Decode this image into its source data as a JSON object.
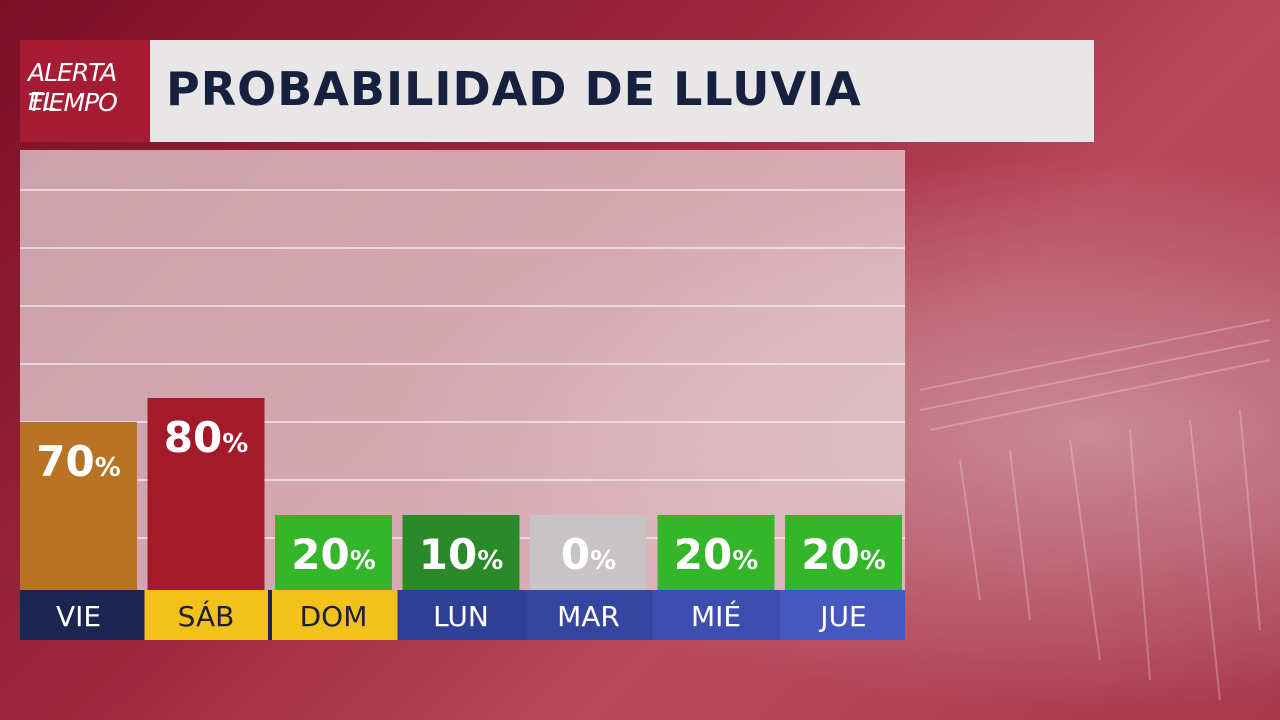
{
  "logo": {
    "line1": "ALERTA EL",
    "line2": "TIEMPO"
  },
  "title": "PROBABILIDAD DE LLUVIA",
  "colors": {
    "brand": "#a61c35",
    "title_text": "#17213f",
    "bar_orange": "#b87424",
    "bar_red": "#a31a2a",
    "bar_green": "#34b52a",
    "bar_darkgreen": "#2a8a2a",
    "bar_gray": "#c8c4c5",
    "day_navy": "#1c2450",
    "day_yellow": "#f2c21a",
    "day_blue": "#3a4aa8"
  },
  "chart_data": {
    "type": "bar",
    "title": "PROBABILIDAD DE LLUVIA",
    "categories": [
      "VIE",
      "SÁB",
      "DOM",
      "LUN",
      "MAR",
      "MIÉ",
      "JUE"
    ],
    "values": [
      70,
      80,
      20,
      10,
      0,
      20,
      20
    ],
    "labels": [
      "70%",
      "80%",
      "20%",
      "10%",
      "0%",
      "20%",
      "20%"
    ],
    "bar_colors": [
      "#b87424",
      "#a31a2a",
      "#34b52a",
      "#2a8a2a",
      "#c8c4c5",
      "#34b52a",
      "#34b52a"
    ],
    "day_bg_colors": [
      "#1c2450",
      "#f2c21a",
      "#f2c21a",
      "#2f3f95",
      "#3645a0",
      "#3d4eb0",
      "#4658c0"
    ],
    "day_text_dark": [
      false,
      true,
      true,
      false,
      false,
      false,
      false
    ],
    "ylim": [
      0,
      100
    ],
    "grid": true
  }
}
